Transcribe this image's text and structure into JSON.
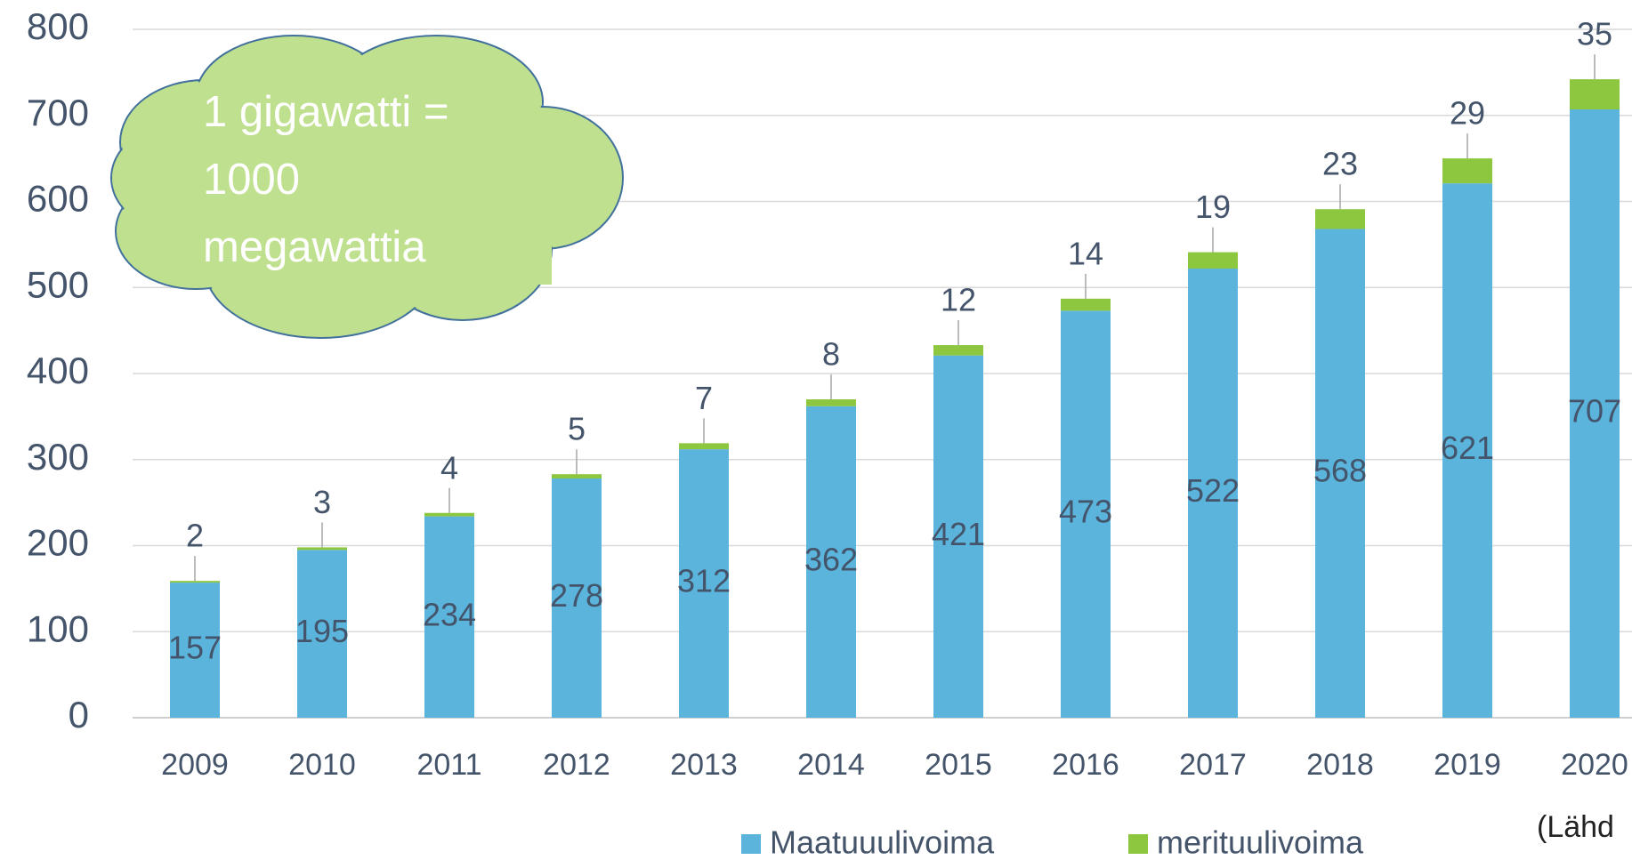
{
  "chart_data": {
    "type": "bar",
    "stacked": true,
    "categories": [
      "2009",
      "2010",
      "2011",
      "2012",
      "2013",
      "2014",
      "2015",
      "2016",
      "2017",
      "2018",
      "2019",
      "2020"
    ],
    "series": [
      {
        "name": "Maatuuulivoima",
        "color": "#5ab4dc",
        "values": [
          157,
          195,
          234,
          278,
          312,
          362,
          421,
          473,
          522,
          568,
          621,
          707
        ]
      },
      {
        "name": "merituulivoima",
        "color": "#8dc63f",
        "values": [
          2,
          3,
          4,
          5,
          7,
          8,
          12,
          14,
          19,
          23,
          29,
          35
        ]
      }
    ],
    "ylim": [
      0,
      800
    ],
    "yticks": [
      0,
      100,
      200,
      300,
      400,
      500,
      600,
      700,
      800
    ],
    "grid": true,
    "annotations": [
      "1 gigawatti =",
      "1000",
      "megawattia"
    ],
    "source_note": "(Lähd"
  }
}
